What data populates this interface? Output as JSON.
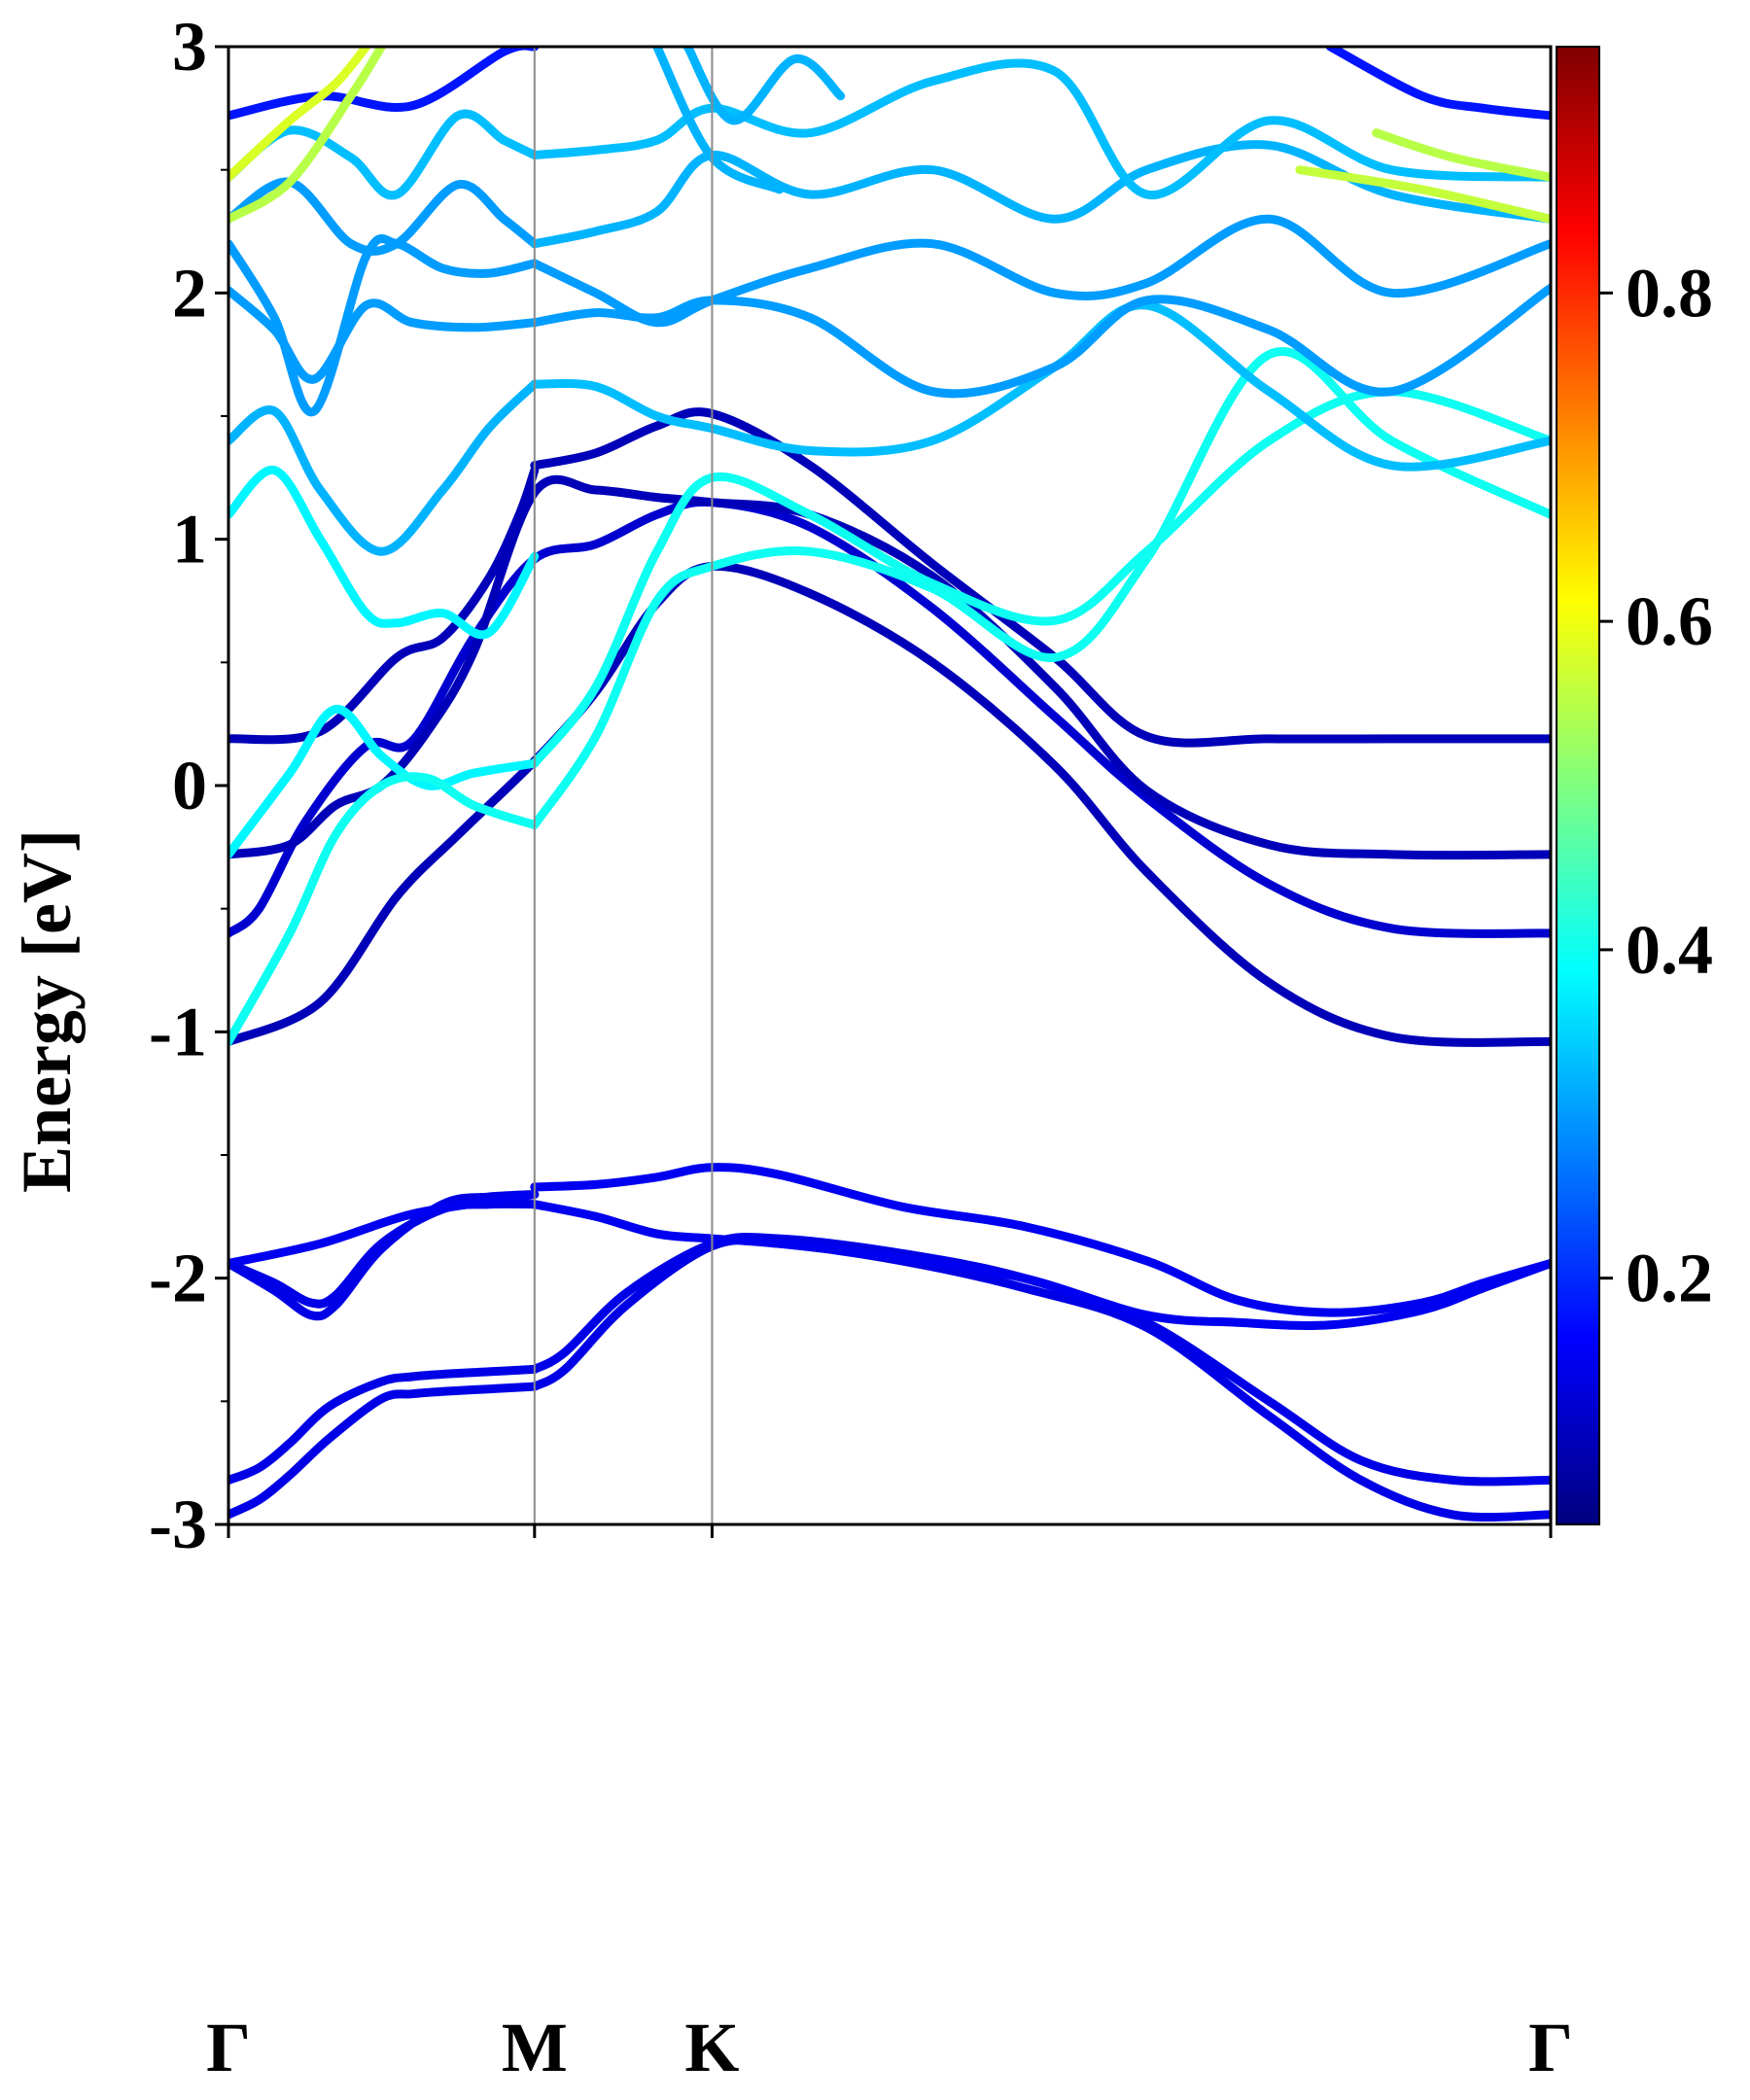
{
  "chart_data": {
    "type": "line",
    "title": "",
    "xlabel": "",
    "ylabel": "Energy [eV]",
    "ylim": [
      -3,
      3
    ],
    "y_ticks": [
      -3,
      -2,
      -1,
      0,
      1,
      2,
      3
    ],
    "y_tick_labels": [
      "-3",
      "-2",
      "-1",
      "0",
      "1",
      "2",
      "3"
    ],
    "x_ticks": [
      0,
      1,
      1.58,
      4.32
    ],
    "x_tick_labels": [
      "Γ",
      "M",
      "K",
      "Γ"
    ],
    "xlim": [
      0,
      4.32
    ],
    "grid": false,
    "colorbar": {
      "colormap": "jet",
      "range": [
        0.05,
        0.95
      ],
      "ticks": [
        0.2,
        0.4,
        0.6,
        0.8
      ],
      "tick_labels": [
        "0.2",
        "0.4",
        "0.6",
        "0.8"
      ]
    },
    "series": [
      {
        "x": [
          0,
          0.1,
          0.2,
          0.33,
          0.5,
          0.6,
          0.7,
          0.85,
          1.0
        ],
        "y": [
          -2.96,
          -2.9,
          -2.8,
          -2.65,
          -2.49,
          -2.47,
          -2.46,
          -2.45,
          -2.44
        ],
        "weight": 0.14
      },
      {
        "x": [
          0,
          0.1,
          0.2,
          0.33,
          0.5,
          0.6,
          0.7,
          0.85,
          1.0
        ],
        "y": [
          -2.82,
          -2.77,
          -2.67,
          -2.52,
          -2.42,
          -2.4,
          -2.39,
          -2.38,
          -2.37
        ],
        "weight": 0.14
      },
      {
        "x": [
          1.0,
          1.1,
          1.3,
          1.58,
          1.8,
          2.2,
          2.6,
          3.0,
          3.4,
          3.7,
          4.0,
          4.32
        ],
        "y": [
          -2.44,
          -2.37,
          -2.11,
          -1.87,
          -1.86,
          -1.93,
          -2.04,
          -2.2,
          -2.56,
          -2.82,
          -2.96,
          -2.96
        ],
        "weight": 0.14
      },
      {
        "x": [
          1.0,
          1.1,
          1.3,
          1.58,
          1.8,
          2.2,
          2.6,
          3.0,
          3.4,
          3.7,
          4.0,
          4.32
        ],
        "y": [
          -2.37,
          -2.3,
          -2.06,
          -1.86,
          -1.84,
          -1.9,
          -2.0,
          -2.18,
          -2.5,
          -2.74,
          -2.82,
          -2.82
        ],
        "weight": 0.14
      },
      {
        "x": [
          0,
          0.15,
          0.27,
          0.35,
          0.5,
          0.7,
          0.85,
          1.0
        ],
        "y": [
          -1.94,
          -2.02,
          -2.1,
          -2.07,
          -1.86,
          -1.72,
          -1.7,
          -1.7
        ],
        "weight": 0.14
      },
      {
        "x": [
          0,
          0.15,
          0.27,
          0.35,
          0.5,
          0.7,
          0.85,
          1.0
        ],
        "y": [
          -1.94,
          -2.05,
          -2.15,
          -2.11,
          -1.88,
          -1.7,
          -1.67,
          -1.66
        ],
        "weight": 0.14
      },
      {
        "x": [
          0,
          0.3,
          0.6,
          0.9,
          1.0
        ],
        "y": [
          -1.94,
          -1.86,
          -1.74,
          -1.68,
          -1.66
        ],
        "weight": 0.15
      },
      {
        "x": [
          1.0,
          1.2,
          1.4,
          1.58,
          1.8,
          2.2,
          2.6,
          3.0,
          3.3,
          3.6,
          3.9,
          4.1,
          4.32
        ],
        "y": [
          -1.63,
          -1.62,
          -1.59,
          -1.55,
          -1.58,
          -1.71,
          -1.79,
          -1.93,
          -2.09,
          -2.14,
          -2.1,
          -2.02,
          -1.94
        ],
        "weight": 0.15
      },
      {
        "x": [
          1.0,
          1.2,
          1.4,
          1.58,
          1.8,
          2.2,
          2.6,
          3.0,
          3.3,
          3.6,
          3.9,
          4.1,
          4.32
        ],
        "y": [
          -1.7,
          -1.75,
          -1.82,
          -1.84,
          -1.86,
          -1.92,
          -2.0,
          -2.15,
          -2.18,
          -2.19,
          -2.13,
          -2.04,
          -1.94
        ],
        "weight": 0.15
      },
      {
        "x": [
          0,
          0.3,
          0.55,
          0.75,
          1.0,
          1.2,
          1.4,
          1.58,
          1.9,
          2.3,
          2.7,
          3.0,
          3.4,
          3.8,
          4.32
        ],
        "y": [
          -1.04,
          -0.88,
          -0.45,
          -0.2,
          0.1,
          0.38,
          0.74,
          0.89,
          0.78,
          0.5,
          0.08,
          -0.35,
          -0.8,
          -1.02,
          -1.04
        ],
        "weight": 0.1
      },
      {
        "x": [
          0,
          0.1,
          0.25,
          0.45,
          0.6,
          0.8,
          1.0,
          1.2,
          1.4,
          1.58,
          1.9,
          2.3,
          2.7,
          3.0,
          3.4,
          3.8,
          4.32
        ],
        "y": [
          -0.6,
          -0.5,
          -0.15,
          0.16,
          0.18,
          0.6,
          0.92,
          0.98,
          1.1,
          1.15,
          1.05,
          0.72,
          0.28,
          -0.05,
          -0.4,
          -0.58,
          -0.6
        ],
        "weight": 0.12
      },
      {
        "x": [
          0,
          0.2,
          0.35,
          0.5,
          0.65,
          0.8,
          1.0,
          1.2,
          1.4,
          1.58,
          1.9,
          2.3,
          2.7,
          3.0,
          3.4,
          3.8,
          4.32
        ],
        "y": [
          -0.28,
          -0.24,
          -0.08,
          0.0,
          0.22,
          0.54,
          1.19,
          1.2,
          1.17,
          1.15,
          1.1,
          0.85,
          0.4,
          -0.02,
          -0.24,
          -0.28,
          -0.28
        ],
        "weight": 0.1
      },
      {
        "x": [
          0,
          0.3,
          0.55,
          0.7,
          0.85,
          0.95,
          1.0
        ],
        "y": [
          0.19,
          0.22,
          0.52,
          0.6,
          0.84,
          1.1,
          1.28
        ],
        "weight": 0.1
      },
      {
        "x": [
          1.0,
          1.2,
          1.4,
          1.58,
          1.9,
          2.3,
          2.7,
          3.0,
          3.4,
          3.8,
          4.32
        ],
        "y": [
          1.3,
          1.35,
          1.46,
          1.51,
          1.3,
          0.9,
          0.52,
          0.2,
          0.19,
          0.19,
          0.19
        ],
        "weight": 0.1
      },
      {
        "x": [
          0,
          0.2,
          0.35,
          0.5,
          0.65,
          0.8,
          1.0
        ],
        "y": [
          -0.28,
          0.05,
          0.31,
          0.12,
          0.0,
          0.05,
          0.09
        ],
        "weight": 0.38
      },
      {
        "x": [
          1.0,
          1.2,
          1.4,
          1.58,
          1.9,
          2.3,
          2.7,
          3.0,
          3.4,
          3.8,
          4.32
        ],
        "y": [
          0.09,
          0.4,
          0.95,
          1.25,
          1.1,
          0.82,
          0.67,
          0.95,
          1.4,
          1.6,
          1.4
        ],
        "weight": 0.4
      },
      {
        "x": [
          0,
          0.2,
          0.35,
          0.5,
          0.65,
          0.8,
          1.0
        ],
        "y": [
          -1.04,
          -0.6,
          -0.2,
          0.0,
          0.03,
          -0.08,
          -0.16
        ],
        "weight": 0.4
      },
      {
        "x": [
          1.0,
          1.2,
          1.4,
          1.58,
          1.9,
          2.3,
          2.7,
          3.0,
          3.4,
          3.8,
          4.32
        ],
        "y": [
          -0.16,
          0.2,
          0.75,
          0.89,
          0.95,
          0.8,
          0.52,
          0.92,
          1.75,
          1.4,
          1.1
        ],
        "weight": 0.4
      },
      {
        "x": [
          0,
          0.15,
          0.3,
          0.45,
          0.55,
          0.7,
          0.85,
          1.0
        ],
        "y": [
          1.1,
          1.28,
          1.0,
          0.7,
          0.66,
          0.7,
          0.62,
          0.93
        ],
        "weight": 0.38
      },
      {
        "x": [
          0,
          0.15,
          0.3,
          0.5,
          0.7,
          0.85,
          1.0
        ],
        "y": [
          1.4,
          1.52,
          1.2,
          0.95,
          1.2,
          1.45,
          1.63
        ],
        "weight": 0.32
      },
      {
        "x": [
          1.0,
          1.2,
          1.4,
          1.58,
          1.9,
          2.3,
          2.7,
          3.0,
          3.4,
          3.8,
          4.32
        ],
        "y": [
          1.63,
          1.62,
          1.5,
          1.45,
          1.36,
          1.4,
          1.7,
          1.95,
          1.6,
          1.3,
          1.4
        ],
        "weight": 0.33
      },
      {
        "x": [
          0,
          0.15,
          0.28,
          0.45,
          0.6,
          0.8,
          1.0
        ],
        "y": [
          2.01,
          1.85,
          1.65,
          1.95,
          1.88,
          1.86,
          1.88
        ],
        "weight": 0.3
      },
      {
        "x": [
          1.0,
          1.2,
          1.4,
          1.58,
          1.9,
          2.3,
          2.7,
          3.0,
          3.4,
          3.8,
          4.32
        ],
        "y": [
          1.88,
          1.92,
          1.9,
          1.97,
          1.9,
          1.6,
          1.7,
          1.97,
          1.85,
          1.6,
          2.02
        ],
        "weight": 0.3
      },
      {
        "x": [
          0,
          0.15,
          0.28,
          0.45,
          0.55,
          0.7,
          0.85,
          1.0
        ],
        "y": [
          2.2,
          1.9,
          1.52,
          2.15,
          2.2,
          2.1,
          2.08,
          2.12
        ],
        "weight": 0.3
      },
      {
        "x": [
          1.0,
          1.2,
          1.4,
          1.58,
          1.9,
          2.3,
          2.7,
          3.0,
          3.4,
          3.8,
          4.32
        ],
        "y": [
          2.12,
          2.0,
          1.88,
          1.97,
          2.1,
          2.2,
          2.0,
          2.04,
          2.3,
          2.0,
          2.2
        ],
        "weight": 0.3
      },
      {
        "x": [
          0,
          0.2,
          0.4,
          0.55,
          0.75,
          0.9,
          1.0
        ],
        "y": [
          2.3,
          2.45,
          2.2,
          2.2,
          2.44,
          2.3,
          2.2
        ],
        "weight": 0.3
      },
      {
        "x": [
          1.0,
          1.2,
          1.4,
          1.58,
          1.9,
          2.3,
          2.7,
          3.0,
          3.4,
          3.8,
          4.32
        ],
        "y": [
          2.2,
          2.25,
          2.33,
          2.56,
          2.4,
          2.5,
          2.3,
          2.5,
          2.6,
          2.4,
          2.3
        ],
        "weight": 0.32
      },
      {
        "x": [
          0,
          0.2,
          0.4,
          0.55,
          0.75,
          0.9,
          1.0
        ],
        "y": [
          2.47,
          2.66,
          2.55,
          2.4,
          2.72,
          2.62,
          2.56
        ],
        "weight": 0.33
      },
      {
        "x": [
          1.0,
          1.2,
          1.4,
          1.58,
          1.9,
          2.3,
          2.7,
          3.0,
          3.4,
          3.8,
          4.32
        ],
        "y": [
          2.56,
          2.58,
          2.62,
          2.75,
          2.65,
          2.86,
          2.9,
          2.4,
          2.7,
          2.5,
          2.47
        ],
        "weight": 0.33
      },
      {
        "x": [
          0,
          0.3,
          0.6,
          0.9,
          1.0
        ],
        "y": [
          2.72,
          2.8,
          2.76,
          2.98,
          3.0
        ],
        "weight": 0.18
      },
      {
        "x": [
          0,
          0.2,
          0.4,
          0.5
        ],
        "y": [
          2.3,
          2.45,
          2.8,
          3.0
        ],
        "weight": 0.55
      },
      {
        "x": [
          0,
          0.2,
          0.35,
          0.45
        ],
        "y": [
          2.47,
          2.7,
          2.85,
          3.0
        ],
        "weight": 0.58
      },
      {
        "x": [
          3.75,
          4.0,
          4.32
        ],
        "y": [
          2.65,
          2.55,
          2.47
        ],
        "weight": 0.55
      },
      {
        "x": [
          3.5,
          3.9,
          4.32
        ],
        "y": [
          2.5,
          2.42,
          2.3
        ],
        "weight": 0.56
      },
      {
        "x": [
          1.4,
          1.58,
          1.8
        ],
        "y": [
          3.0,
          2.55,
          2.42
        ],
        "weight": 0.32
      },
      {
        "x": [
          1.5,
          1.65,
          1.85,
          2.0
        ],
        "y": [
          3.0,
          2.7,
          2.95,
          2.8
        ],
        "weight": 0.32
      },
      {
        "x": [
          3.6,
          3.9,
          4.1,
          4.32
        ],
        "y": [
          3.0,
          2.8,
          2.75,
          2.72
        ],
        "weight": 0.18
      }
    ]
  }
}
